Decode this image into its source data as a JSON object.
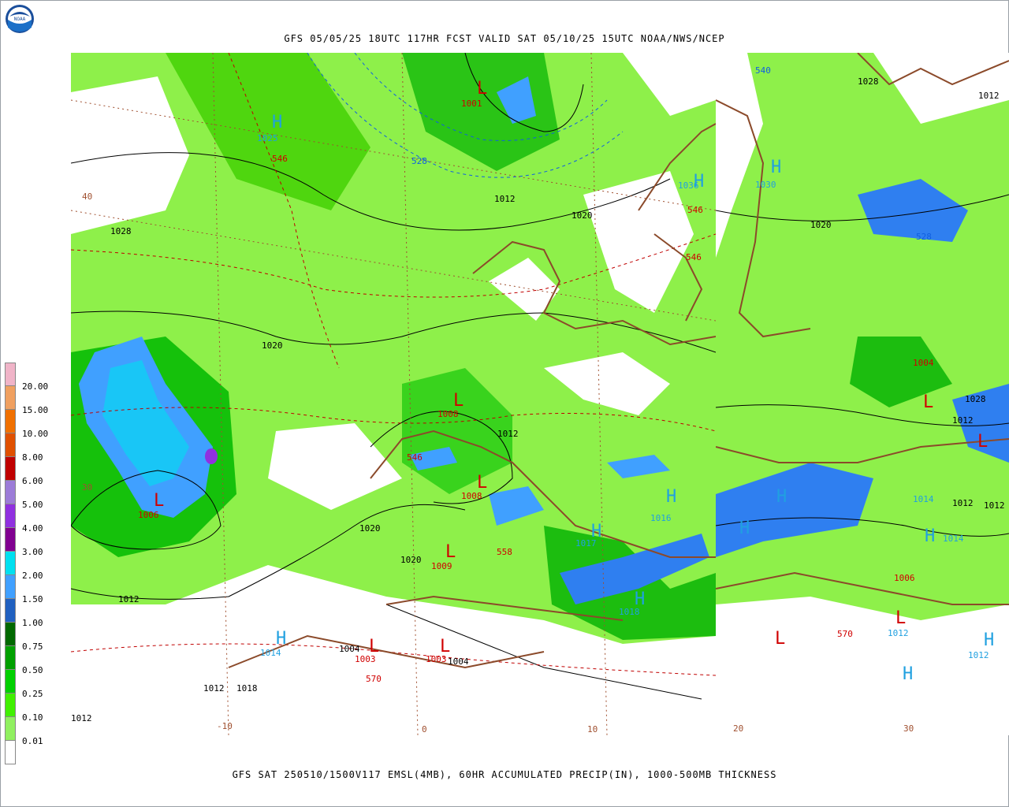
{
  "header": {
    "title": "GFS 05/05/25 18UTC 117HR FCST VALID SAT 05/10/25 15UTC NOAA/NWS/NCEP"
  },
  "footer": {
    "title": "GFS SAT 250510/1500V117 EMSL(4MB), 60HR ACCUMULATED PRECIP(IN), 1000-500MB THICKNESS"
  },
  "logo": {
    "text": "NOAA",
    "icon": "noaa-logo-icon"
  },
  "legend": [
    {
      "label": "20.00",
      "color": "#f0b4c8"
    },
    {
      "label": "15.00",
      "color": "#f0a060"
    },
    {
      "label": "10.00",
      "color": "#f07000"
    },
    {
      "label": "8.00",
      "color": "#e05000"
    },
    {
      "label": "6.00",
      "color": "#c00000"
    },
    {
      "label": "5.00",
      "color": "#9c7cd8"
    },
    {
      "label": "4.00",
      "color": "#9030e0"
    },
    {
      "label": "3.00",
      "color": "#800090"
    },
    {
      "label": "2.00",
      "color": "#00e0f0"
    },
    {
      "label": "1.50",
      "color": "#40a0ff"
    },
    {
      "label": "1.00",
      "color": "#2060c0"
    },
    {
      "label": "0.75",
      "color": "#006800"
    },
    {
      "label": "0.50",
      "color": "#00a000"
    },
    {
      "label": "0.25",
      "color": "#00d000"
    },
    {
      "label": "0.10",
      "color": "#40f000"
    },
    {
      "label": "0.01",
      "color": "#90f060"
    },
    {
      "label": "",
      "color": "#ffffff"
    }
  ],
  "map_labels": {
    "pressure_black": [
      "1028",
      "1012",
      "1020",
      "1028",
      "1020",
      "1012",
      "1020",
      "1020",
      "1012",
      "1012",
      "1012",
      "1012",
      "1004",
      "1004",
      "1012",
      "1018",
      "1012",
      "1012",
      "1028",
      "1020",
      "1012",
      "1012",
      "1012"
    ],
    "lows": [
      "L",
      "L",
      "L",
      "L",
      "L",
      "L",
      "L",
      "L",
      "L",
      "L",
      "L",
      "L",
      "L"
    ],
    "low_values": [
      "1001",
      "1006",
      "1008",
      "1008",
      "1009",
      "1003",
      "1003",
      "1004",
      "1006",
      "1006",
      "1012"
    ],
    "highs": [
      "H",
      "H",
      "H",
      "H",
      "H",
      "H",
      "H",
      "H",
      "H",
      "H",
      "H",
      "H",
      "H",
      "H",
      "H"
    ],
    "high_values": [
      "1025",
      "1030",
      "1036",
      "1017",
      "1014",
      "1014",
      "1018",
      "1016",
      "1019",
      "1012",
      "1012",
      "1014",
      "1014"
    ],
    "thickness_red": [
      "546",
      "546",
      "546",
      "558",
      "570",
      "570",
      "546"
    ],
    "thickness_blue": [
      "540",
      "528",
      "528"
    ],
    "graticule_brown": [
      "40",
      "30",
      "-10",
      "0",
      "10",
      "20",
      "30",
      "40",
      "-10"
    ]
  }
}
